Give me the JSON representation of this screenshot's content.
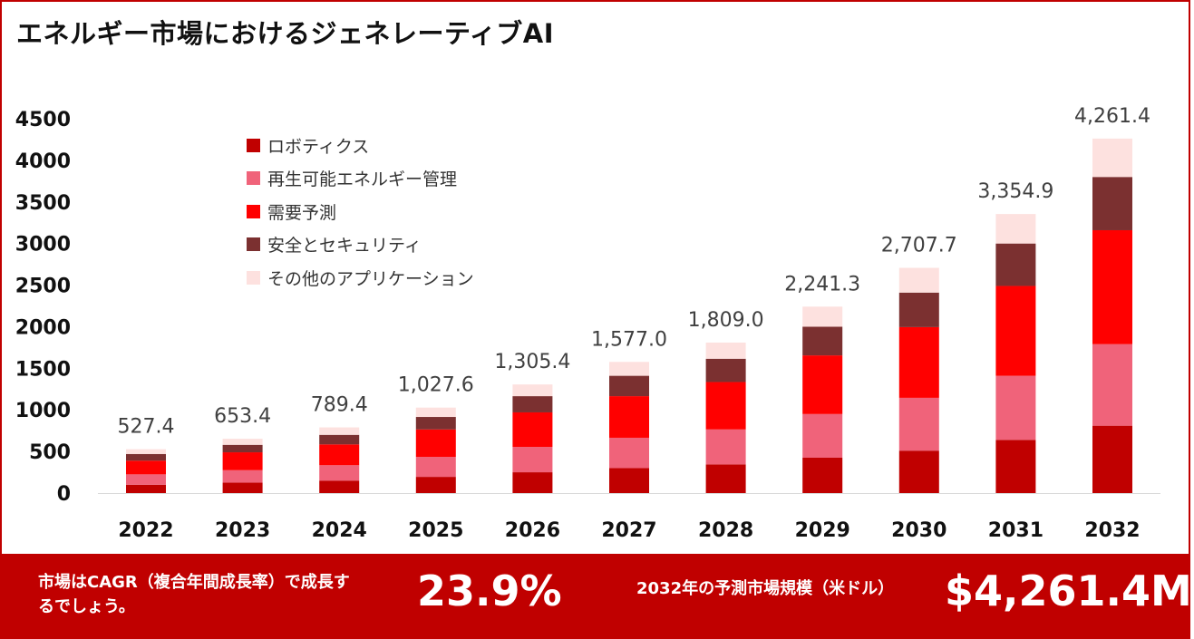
{
  "title": "エネルギー市場におけるジェネレーティブAI",
  "colors": {
    "robotics": "#c00000",
    "renewable": "#f0637a",
    "demand": "#ff0000",
    "security": "#7b3030",
    "other": "#fde1df",
    "bar_band": "#c00000"
  },
  "chart_data": {
    "type": "bar",
    "stacked": true,
    "categories": [
      "2022",
      "2023",
      "2024",
      "2025",
      "2026",
      "2027",
      "2028",
      "2029",
      "2030",
      "2031",
      "2032"
    ],
    "totals": [
      527.4,
      653.4,
      789.4,
      1027.6,
      1305.4,
      1577.0,
      1809.0,
      2241.3,
      2707.7,
      3354.9,
      4261.4
    ],
    "total_labels": [
      "527.4",
      "653.4",
      "789.4",
      "1,027.6",
      "1,305.4",
      "1,577.0",
      "1,809.0",
      "2,241.3",
      "2,707.7",
      "3,354.9",
      "4,261.4"
    ],
    "yticks": [
      "4500",
      "4000",
      "3500",
      "3000",
      "2500",
      "2000",
      "1500",
      "1000",
      "500",
      "0"
    ],
    "ylim": [
      0,
      4500
    ],
    "series": [
      {
        "name": "ロボティクス",
        "values": [
          100,
          125,
          150,
          195,
          250,
          300,
          345,
          425,
          510,
          640,
          810
        ]
      },
      {
        "name": "再生可能エネルギー管理",
        "values": [
          125,
          150,
          185,
          240,
          305,
          365,
          420,
          525,
          635,
          770,
          980
        ]
      },
      {
        "name": "需要予測",
        "values": [
          165,
          215,
          250,
          330,
          415,
          500,
          570,
          705,
          850,
          1080,
          1370
        ]
      },
      {
        "name": "安全とセキュリティ",
        "values": [
          80,
          90,
          115,
          150,
          195,
          245,
          280,
          345,
          415,
          510,
          640
        ]
      },
      {
        "name": "その他のアプリケーション",
        "values": [
          57.4,
          73.4,
          89.4,
          112.6,
          140.4,
          167.0,
          194.0,
          241.3,
          297.7,
          354.9,
          461.4
        ]
      }
    ],
    "legend_position": "top-left",
    "grid": false
  },
  "footer": {
    "cagr_text": "市場はCAGR（複合年間成長率）で成長するでしょう。",
    "cagr_value": "23.9%",
    "forecast_text": "2032年の予測市場規模（米ドル）",
    "forecast_value": "$4,261.4M"
  }
}
